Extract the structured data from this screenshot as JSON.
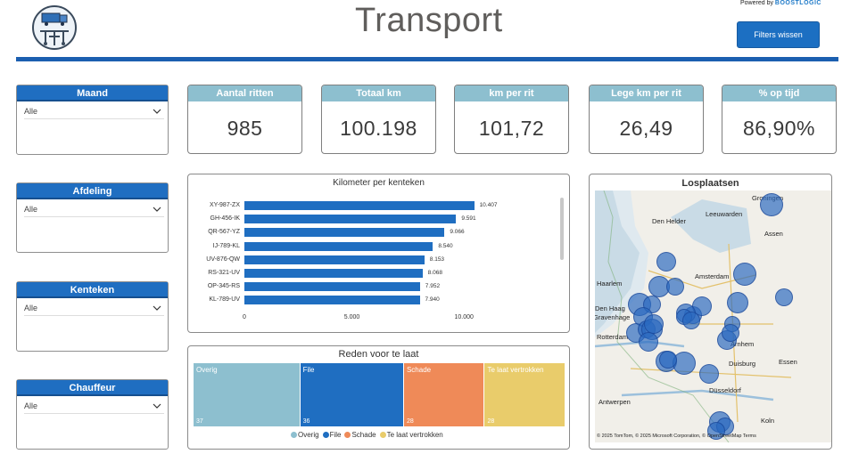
{
  "header": {
    "title": "Transport",
    "powered_prefix": "Powered by",
    "powered_brand": "BOOSTLOGIC",
    "filter_button": "Filters wissen"
  },
  "slicers": [
    {
      "label": "Maand",
      "value": "Alle"
    },
    {
      "label": "Afdeling",
      "value": "Alle"
    },
    {
      "label": "Kenteken",
      "value": "Alle"
    },
    {
      "label": "Chauffeur",
      "value": "Alle"
    }
  ],
  "kpis": [
    {
      "label": "Aantal ritten",
      "value": "985"
    },
    {
      "label": "Totaal km",
      "value": "100.198"
    },
    {
      "label": "km per rit",
      "value": "101,72"
    },
    {
      "label": "Lege km per rit",
      "value": "26,49"
    },
    {
      "label": "% op tijd",
      "value": "86,90%"
    }
  ],
  "bar_chart": {
    "title": "Kilometer per kenteken",
    "ticks": [
      "0",
      "5.000",
      "10.000"
    ]
  },
  "treemap": {
    "title": "Reden voor te laat"
  },
  "map": {
    "title": "Losplaatsen",
    "labels": [
      {
        "text": "Groningen"
      },
      {
        "text": "Leeuwarden"
      },
      {
        "text": "Den Helder"
      },
      {
        "text": "Assen"
      },
      {
        "text": "Amsterdam"
      },
      {
        "text": "Haarlem"
      },
      {
        "text": "Den Haag"
      },
      {
        "text": "Gravenhage"
      },
      {
        "text": "Rotterdam"
      },
      {
        "text": "Arnhem"
      },
      {
        "text": "Duisburg"
      },
      {
        "text": "Essen"
      },
      {
        "text": "Düsseldorf"
      },
      {
        "text": "Antwerpen"
      },
      {
        "text": "Koln"
      }
    ],
    "copyright": "© 2025 TomTom, © 2025 Microsoft Corporation, © OpenStreetMap  Terms"
  },
  "chart_data": [
    {
      "type": "bar",
      "title": "Kilometer per kenteken",
      "orientation": "horizontal",
      "categories": [
        "XY-987-ZX",
        "GH-456-IK",
        "QR-567-YZ",
        "IJ-789-KL",
        "UV-876-QW",
        "RS-321-UV",
        "OP-345-RS",
        "KL-789-UV"
      ],
      "values": [
        10407,
        9591,
        9066,
        8540,
        8153,
        8068,
        7952,
        7940
      ],
      "value_labels": [
        "10.407",
        "9.591",
        "9.066",
        "8.540",
        "8.153",
        "8.068",
        "7.952",
        "7.940"
      ],
      "xlim": [
        0,
        12000
      ],
      "grid": false,
      "color": "#1f6ec1"
    },
    {
      "type": "treemap",
      "title": "Reden voor te laat",
      "categories": [
        "Overig",
        "File",
        "Schade",
        "Te laat vertrokken"
      ],
      "values": [
        37,
        36,
        28,
        28
      ],
      "colors": [
        "#8dbfcf",
        "#1f6ec1",
        "#ef8a58",
        "#e9cc6b"
      ],
      "legend": "bottom"
    },
    {
      "type": "scatter",
      "title": "Losplaatsen",
      "kind": "bubble-map",
      "bubble_color": "#2968bf",
      "point_count": 30
    }
  ]
}
